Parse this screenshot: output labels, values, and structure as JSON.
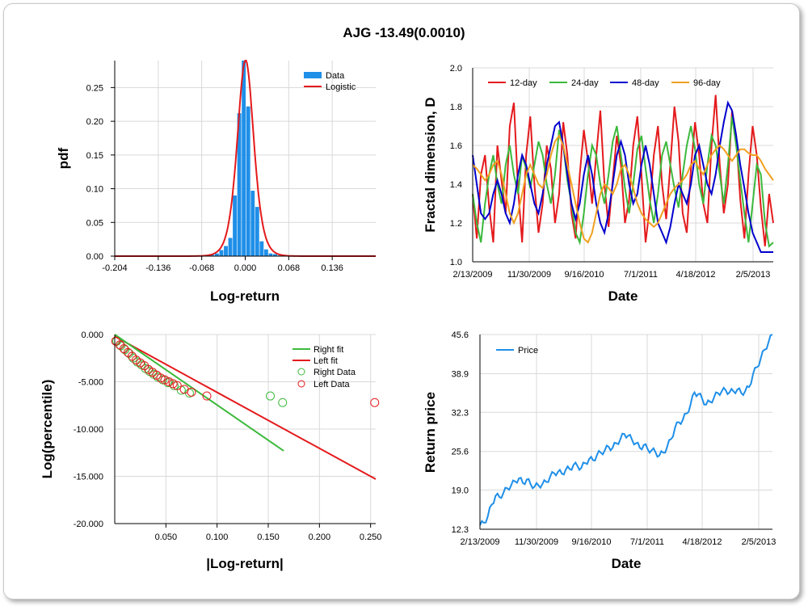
{
  "title": "AJG -13.49(0.0010)",
  "colors": {
    "blue": "#1f8fe8",
    "red": "#e41a1c",
    "green": "#3cb93c",
    "navy": "#0000cc",
    "orange": "#f0a020",
    "grid": "#d9d9d9"
  },
  "chart_data": [
    {
      "type": "bar",
      "xlabel": "Log-return",
      "ylabel": "pdf",
      "xlim": [
        -0.204,
        0.204
      ],
      "ylim": [
        0,
        0.29
      ],
      "xticks": [
        "-0.204",
        "-0.136",
        "-0.068",
        "0.000",
        "0.068",
        "0.136"
      ],
      "yticks": [
        "0.00",
        "0.05",
        "0.10",
        "0.15",
        "0.20",
        "0.25"
      ],
      "legend": [
        "Data",
        "Logistic"
      ],
      "legend_position": "top-right",
      "bar_width": 0.0068,
      "bars": [
        {
          "x": -0.065,
          "y": 0.001
        },
        {
          "x": -0.058,
          "y": 0.002
        },
        {
          "x": -0.051,
          "y": 0.002
        },
        {
          "x": -0.044,
          "y": 0.004
        },
        {
          "x": -0.037,
          "y": 0.009
        },
        {
          "x": -0.03,
          "y": 0.015
        },
        {
          "x": -0.023,
          "y": 0.027
        },
        {
          "x": -0.016,
          "y": 0.09
        },
        {
          "x": -0.009,
          "y": 0.212
        },
        {
          "x": -0.002,
          "y": 0.29
        },
        {
          "x": 0.005,
          "y": 0.222
        },
        {
          "x": 0.012,
          "y": 0.097
        },
        {
          "x": 0.019,
          "y": 0.073
        },
        {
          "x": 0.026,
          "y": 0.022
        },
        {
          "x": 0.033,
          "y": 0.01
        },
        {
          "x": 0.04,
          "y": 0.004
        },
        {
          "x": 0.047,
          "y": 0.003
        },
        {
          "x": 0.054,
          "y": 0.001
        },
        {
          "x": 0.061,
          "y": 0.001
        }
      ],
      "logistic": {
        "mu": 0.0005,
        "s": 0.0086
      }
    },
    {
      "type": "line",
      "xlabel": "Date",
      "ylabel": "Fractal dimension, D",
      "ylim": [
        1.0,
        2.0
      ],
      "xticks": [
        "2/13/2009",
        "11/30/2009",
        "9/16/2010",
        "7/1/2011",
        "4/18/2012",
        "2/5/2013"
      ],
      "yticks": [
        "1.0",
        "1.2",
        "1.4",
        "1.6",
        "1.8",
        "2.0"
      ],
      "legend_position": "top-left",
      "series": [
        {
          "name": "12-day",
          "color": "#e41a1c",
          "values": [
            1.35,
            1.12,
            1.45,
            1.55,
            1.28,
            1.1,
            1.6,
            1.42,
            1.25,
            1.7,
            1.82,
            1.38,
            1.1,
            1.55,
            1.75,
            1.4,
            1.15,
            1.3,
            1.6,
            1.48,
            1.2,
            1.35,
            1.72,
            1.55,
            1.25,
            1.12,
            1.45,
            1.68,
            1.52,
            1.3,
            1.55,
            1.78,
            1.4,
            1.18,
            1.42,
            1.65,
            1.5,
            1.2,
            1.32,
            1.6,
            1.75,
            1.45,
            1.1,
            1.28,
            1.55,
            1.7,
            1.4,
            1.22,
            1.5,
            1.8,
            1.62,
            1.25,
            1.15,
            1.48,
            1.72,
            1.55,
            1.3,
            1.2,
            1.6,
            1.86,
            1.5,
            1.25,
            1.4,
            1.78,
            1.65,
            1.32,
            1.12,
            1.45,
            1.7,
            1.55,
            1.28,
            1.08,
            1.35,
            1.2
          ]
        },
        {
          "name": "24-day",
          "color": "#3cb93c",
          "values": [
            1.35,
            1.2,
            1.1,
            1.3,
            1.45,
            1.55,
            1.4,
            1.3,
            1.5,
            1.6,
            1.45,
            1.35,
            1.55,
            1.48,
            1.38,
            1.5,
            1.62,
            1.55,
            1.4,
            1.3,
            1.45,
            1.68,
            1.6,
            1.42,
            1.3,
            1.15,
            1.1,
            1.25,
            1.45,
            1.6,
            1.55,
            1.4,
            1.3,
            1.45,
            1.62,
            1.7,
            1.55,
            1.38,
            1.25,
            1.4,
            1.58,
            1.65,
            1.48,
            1.32,
            1.2,
            1.35,
            1.55,
            1.62,
            1.5,
            1.38,
            1.28,
            1.45,
            1.6,
            1.7,
            1.58,
            1.4,
            1.3,
            1.5,
            1.65,
            1.6,
            1.45,
            1.3,
            1.5,
            1.75,
            1.6,
            1.42,
            1.25,
            1.1,
            1.3,
            1.5,
            1.45,
            1.2,
            1.08,
            1.1
          ]
        },
        {
          "name": "48-day",
          "color": "#0000cc",
          "values": [
            1.55,
            1.4,
            1.25,
            1.22,
            1.25,
            1.35,
            1.42,
            1.35,
            1.25,
            1.2,
            1.3,
            1.45,
            1.55,
            1.5,
            1.4,
            1.3,
            1.25,
            1.35,
            1.5,
            1.6,
            1.7,
            1.72,
            1.6,
            1.45,
            1.3,
            1.22,
            1.3,
            1.45,
            1.55,
            1.45,
            1.3,
            1.2,
            1.15,
            1.25,
            1.4,
            1.55,
            1.62,
            1.55,
            1.4,
            1.3,
            1.35,
            1.5,
            1.6,
            1.5,
            1.35,
            1.2,
            1.15,
            1.1,
            1.18,
            1.3,
            1.4,
            1.35,
            1.3,
            1.4,
            1.55,
            1.6,
            1.5,
            1.4,
            1.35,
            1.45,
            1.6,
            1.72,
            1.82,
            1.78,
            1.65,
            1.5,
            1.38,
            1.25,
            1.15,
            1.1,
            1.05,
            1.05,
            1.05,
            1.05
          ]
        },
        {
          "name": "96-day",
          "color": "#f0a020",
          "values": [
            1.5,
            1.48,
            1.45,
            1.42,
            1.45,
            1.5,
            1.52,
            1.45,
            1.35,
            1.25,
            1.2,
            1.25,
            1.35,
            1.45,
            1.5,
            1.45,
            1.4,
            1.38,
            1.45,
            1.55,
            1.62,
            1.65,
            1.6,
            1.5,
            1.4,
            1.3,
            1.2,
            1.12,
            1.1,
            1.15,
            1.25,
            1.35,
            1.4,
            1.38,
            1.35,
            1.4,
            1.48,
            1.5,
            1.45,
            1.38,
            1.3,
            1.25,
            1.22,
            1.2,
            1.18,
            1.2,
            1.25,
            1.3,
            1.35,
            1.38,
            1.4,
            1.42,
            1.45,
            1.5,
            1.52,
            1.48,
            1.45,
            1.5,
            1.55,
            1.58,
            1.6,
            1.58,
            1.55,
            1.52,
            1.55,
            1.58,
            1.58,
            1.56,
            1.55,
            1.55,
            1.52,
            1.48,
            1.45,
            1.42
          ]
        }
      ]
    },
    {
      "type": "scatter",
      "xlabel": "|Log-return|",
      "ylabel": "Log(percentile)",
      "xlim": [
        0,
        0.255
      ],
      "ylim": [
        -20,
        0
      ],
      "xticks": [
        "0.050",
        "0.100",
        "0.150",
        "0.200",
        "0.250"
      ],
      "yticks": [
        "0.000",
        "-5.000",
        "-10.000",
        "-15.000",
        "-20.000"
      ],
      "legend": [
        "Right fit",
        "Left fit",
        "Right Data",
        "Left Data"
      ],
      "legend_position": "top-right",
      "right_fit": {
        "x": [
          0,
          0.165
        ],
        "y": [
          0,
          -12.3
        ]
      },
      "left_fit": {
        "x": [
          0,
          0.255
        ],
        "y": [
          -0.2,
          -15.3
        ]
      },
      "right_data": [
        [
          0.002,
          -0.7
        ],
        [
          0.006,
          -1.2
        ],
        [
          0.01,
          -1.6
        ],
        [
          0.014,
          -2.0
        ],
        [
          0.018,
          -2.5
        ],
        [
          0.022,
          -2.9
        ],
        [
          0.026,
          -3.2
        ],
        [
          0.03,
          -3.6
        ],
        [
          0.034,
          -3.9
        ],
        [
          0.038,
          -4.2
        ],
        [
          0.042,
          -4.5
        ],
        [
          0.047,
          -4.8
        ],
        [
          0.052,
          -5.1
        ],
        [
          0.058,
          -5.4
        ],
        [
          0.065,
          -5.9
        ],
        [
          0.073,
          -6.2
        ],
        [
          0.152,
          -6.5
        ],
        [
          0.164,
          -7.2
        ]
      ],
      "left_data": [
        [
          0.001,
          -0.7
        ],
        [
          0.005,
          -1.1
        ],
        [
          0.009,
          -1.5
        ],
        [
          0.013,
          -1.9
        ],
        [
          0.017,
          -2.3
        ],
        [
          0.021,
          -2.7
        ],
        [
          0.025,
          -3.0
        ],
        [
          0.029,
          -3.3
        ],
        [
          0.033,
          -3.7
        ],
        [
          0.037,
          -4.0
        ],
        [
          0.041,
          -4.3
        ],
        [
          0.045,
          -4.6
        ],
        [
          0.049,
          -4.8
        ],
        [
          0.053,
          -5.0
        ],
        [
          0.057,
          -5.2
        ],
        [
          0.061,
          -5.4
        ],
        [
          0.068,
          -5.8
        ],
        [
          0.075,
          -6.1
        ],
        [
          0.09,
          -6.5
        ],
        [
          0.254,
          -7.2
        ]
      ]
    },
    {
      "type": "line",
      "xlabel": "Date",
      "ylabel": "Return price",
      "ylim": [
        12.3,
        45.6
      ],
      "xticks": [
        "2/13/2009",
        "11/30/2009",
        "9/16/2010",
        "7/1/2011",
        "4/18/2012",
        "2/5/2013"
      ],
      "yticks": [
        "12.3",
        "19.0",
        "25.6",
        "32.3",
        "38.9",
        "45.6"
      ],
      "legend_position": "top-left",
      "series": [
        {
          "name": "Price",
          "color": "#1f8fe8",
          "values": [
            13.0,
            13.4,
            14.5,
            16.5,
            18.0,
            17.8,
            18.5,
            19.3,
            19.8,
            20.5,
            21.0,
            20.2,
            20.8,
            20.0,
            19.6,
            19.8,
            20.0,
            20.4,
            21.3,
            21.9,
            22.1,
            21.8,
            22.5,
            22.6,
            23.3,
            23.1,
            22.8,
            23.6,
            24.3,
            24.1,
            25.0,
            25.4,
            25.8,
            26.4,
            26.2,
            27.0,
            27.7,
            28.6,
            28.3,
            27.6,
            27.0,
            26.2,
            26.7,
            26.0,
            25.8,
            25.5,
            24.9,
            25.4,
            26.4,
            27.7,
            29.6,
            30.6,
            31.0,
            32.1,
            33.6,
            35.7,
            35.4,
            34.6,
            33.6,
            34.1,
            34.8,
            35.6,
            35.9,
            36.1,
            35.7,
            35.9,
            36.2,
            35.6,
            35.9,
            36.6,
            38.8,
            40.0,
            41.5,
            43.0,
            44.3,
            45.6
          ]
        }
      ]
    }
  ]
}
